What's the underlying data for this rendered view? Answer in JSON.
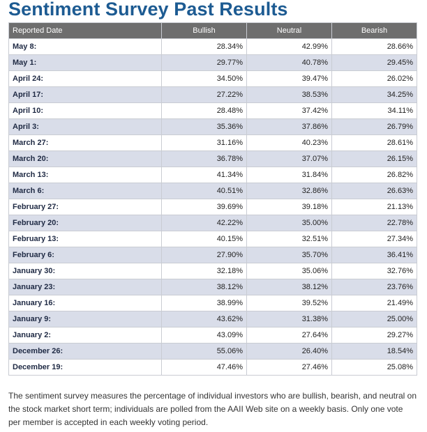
{
  "page": {
    "title": "Sentiment Survey Past Results"
  },
  "table": {
    "headers": [
      "Reported Date",
      "Bullish",
      "Neutral",
      "Bearish"
    ],
    "rows": [
      {
        "date": "May 8:",
        "bullish": "28.34%",
        "neutral": "42.99%",
        "bearish": "28.66%"
      },
      {
        "date": "May 1:",
        "bullish": "29.77%",
        "neutral": "40.78%",
        "bearish": "29.45%"
      },
      {
        "date": "April 24:",
        "bullish": "34.50%",
        "neutral": "39.47%",
        "bearish": "26.02%"
      },
      {
        "date": "April 17:",
        "bullish": "27.22%",
        "neutral": "38.53%",
        "bearish": "34.25%"
      },
      {
        "date": "April 10:",
        "bullish": "28.48%",
        "neutral": "37.42%",
        "bearish": "34.11%"
      },
      {
        "date": "April 3:",
        "bullish": "35.36%",
        "neutral": "37.86%",
        "bearish": "26.79%"
      },
      {
        "date": "March 27:",
        "bullish": "31.16%",
        "neutral": "40.23%",
        "bearish": "28.61%"
      },
      {
        "date": "March 20:",
        "bullish": "36.78%",
        "neutral": "37.07%",
        "bearish": "26.15%"
      },
      {
        "date": "March 13:",
        "bullish": "41.34%",
        "neutral": "31.84%",
        "bearish": "26.82%"
      },
      {
        "date": "March 6:",
        "bullish": "40.51%",
        "neutral": "32.86%",
        "bearish": "26.63%"
      },
      {
        "date": "February 27:",
        "bullish": "39.69%",
        "neutral": "39.18%",
        "bearish": "21.13%"
      },
      {
        "date": "February 20:",
        "bullish": "42.22%",
        "neutral": "35.00%",
        "bearish": "22.78%"
      },
      {
        "date": "February 13:",
        "bullish": "40.15%",
        "neutral": "32.51%",
        "bearish": "27.34%"
      },
      {
        "date": "February 6:",
        "bullish": "27.90%",
        "neutral": "35.70%",
        "bearish": "36.41%"
      },
      {
        "date": "January 30:",
        "bullish": "32.18%",
        "neutral": "35.06%",
        "bearish": "32.76%"
      },
      {
        "date": "January 23:",
        "bullish": "38.12%",
        "neutral": "38.12%",
        "bearish": "23.76%"
      },
      {
        "date": "January 16:",
        "bullish": "38.99%",
        "neutral": "39.52%",
        "bearish": "21.49%"
      },
      {
        "date": "January 9:",
        "bullish": "43.62%",
        "neutral": "31.38%",
        "bearish": "25.00%"
      },
      {
        "date": "January 2:",
        "bullish": "43.09%",
        "neutral": "27.64%",
        "bearish": "29.27%"
      },
      {
        "date": "December 26:",
        "bullish": "55.06%",
        "neutral": "26.40%",
        "bearish": "18.54%"
      },
      {
        "date": "December 19:",
        "bullish": "47.46%",
        "neutral": "27.46%",
        "bearish": "25.08%"
      }
    ]
  },
  "footer": {
    "text": "The sentiment survey measures the percentage of individual investors who are bullish, bearish, and neutral on the stock market short term; individuals are polled from the AAII Web site on a weekly basis. Only one vote per member is accepted in each weekly voting period."
  },
  "colors": {
    "title": "#1d5b92",
    "header_bg": "#6e6e6e",
    "row_alt_bg": "#d9dde9",
    "border": "#c9ccd3"
  }
}
